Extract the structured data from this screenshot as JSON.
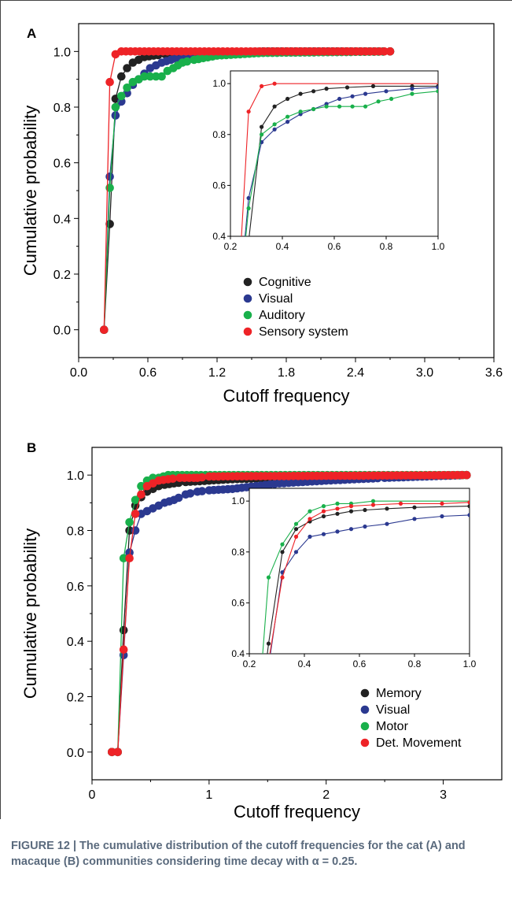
{
  "panels": [
    {
      "label": "A",
      "xlabel": "Cutoff frequency",
      "ylabel": "Cumulative probability",
      "xticks": [
        "0.0",
        "0.6",
        "1.2",
        "1.8",
        "2.4",
        "3.0",
        "3.6"
      ],
      "yticks": [
        "0.0",
        "0.2",
        "0.4",
        "0.6",
        "0.8",
        "1.0"
      ],
      "inset_xticks": [
        "0.2",
        "0.4",
        "0.6",
        "0.8",
        "1.0"
      ],
      "inset_yticks": [
        "0.4",
        "0.6",
        "0.8",
        "1.0"
      ],
      "legend": [
        "Cognitive",
        "Visual",
        "Auditory",
        "Sensory system"
      ]
    },
    {
      "label": "B",
      "xlabel": "Cutoff frequency",
      "ylabel": "Cumulative probability",
      "xticks": [
        "0",
        "1",
        "2",
        "3"
      ],
      "yticks": [
        "0.0",
        "0.2",
        "0.4",
        "0.6",
        "0.8",
        "1.0"
      ],
      "inset_xticks": [
        "0.2",
        "0.4",
        "0.6",
        "0.8",
        "1.0"
      ],
      "inset_yticks": [
        "0.4",
        "0.6",
        "0.8",
        "1.0"
      ],
      "legend": [
        "Memory",
        "Visual",
        "Motor",
        "Det. Movement"
      ]
    }
  ],
  "caption": "FIGURE 12 | The cumulative distribution of the cutoff frequencies for the cat (A) and macaque (B) communities considering time decay with α = 0.25.",
  "colors": {
    "black": "#222222",
    "blue": "#2b3990",
    "green": "#19b04b",
    "red": "#ee2327",
    "caption": "#5a6a7d"
  },
  "chart_data": [
    {
      "type": "line",
      "panel": "A",
      "xlabel": "Cutoff frequency",
      "ylabel": "Cumulative probability",
      "xlim": [
        0,
        3.6
      ],
      "ylim": [
        -0.1,
        1.1
      ],
      "inset": {
        "xlim": [
          0.2,
          1.0
        ],
        "ylim": [
          0.4,
          1.05
        ]
      },
      "series": [
        {
          "name": "Cognitive",
          "color": "#222222",
          "x_end": 2.7,
          "points": [
            [
              0.22,
              0.0
            ],
            [
              0.27,
              0.38
            ],
            [
              0.32,
              0.83
            ],
            [
              0.37,
              0.91
            ],
            [
              0.42,
              0.94
            ],
            [
              0.47,
              0.96
            ],
            [
              0.52,
              0.97
            ],
            [
              0.57,
              0.98
            ],
            [
              0.65,
              0.985
            ],
            [
              0.75,
              0.99
            ],
            [
              0.9,
              0.99
            ],
            [
              1.0,
              0.99
            ],
            [
              1.2,
              0.995
            ],
            [
              1.6,
              1.0
            ],
            [
              2.7,
              1.0
            ]
          ]
        },
        {
          "name": "Visual",
          "color": "#2b3990",
          "x_end": 2.7,
          "points": [
            [
              0.22,
              0.0
            ],
            [
              0.27,
              0.55
            ],
            [
              0.32,
              0.77
            ],
            [
              0.37,
              0.82
            ],
            [
              0.42,
              0.85
            ],
            [
              0.47,
              0.88
            ],
            [
              0.52,
              0.9
            ],
            [
              0.57,
              0.92
            ],
            [
              0.62,
              0.94
            ],
            [
              0.67,
              0.95
            ],
            [
              0.72,
              0.96
            ],
            [
              0.8,
              0.97
            ],
            [
              0.9,
              0.98
            ],
            [
              1.0,
              0.985
            ],
            [
              1.2,
              0.99
            ],
            [
              1.6,
              0.995
            ],
            [
              2.7,
              1.0
            ]
          ]
        },
        {
          "name": "Auditory",
          "color": "#19b04b",
          "x_end": 2.7,
          "points": [
            [
              0.22,
              0.0
            ],
            [
              0.27,
              0.51
            ],
            [
              0.32,
              0.8
            ],
            [
              0.37,
              0.84
            ],
            [
              0.42,
              0.87
            ],
            [
              0.47,
              0.89
            ],
            [
              0.52,
              0.9
            ],
            [
              0.57,
              0.91
            ],
            [
              0.62,
              0.91
            ],
            [
              0.67,
              0.91
            ],
            [
              0.72,
              0.91
            ],
            [
              0.77,
              0.93
            ],
            [
              0.82,
              0.94
            ],
            [
              0.9,
              0.96
            ],
            [
              1.0,
              0.97
            ],
            [
              1.2,
              0.985
            ],
            [
              1.6,
              0.995
            ],
            [
              2.7,
              1.0
            ]
          ]
        },
        {
          "name": "Sensory system",
          "color": "#ee2327",
          "x_end": 2.7,
          "points": [
            [
              0.22,
              0.0
            ],
            [
              0.27,
              0.89
            ],
            [
              0.32,
              0.99
            ],
            [
              0.37,
              1.0
            ],
            [
              2.7,
              1.0
            ]
          ]
        }
      ]
    },
    {
      "type": "line",
      "panel": "B",
      "xlabel": "Cutoff frequency",
      "ylabel": "Cumulative probability",
      "xlim": [
        0,
        3.5
      ],
      "ylim": [
        -0.1,
        1.1
      ],
      "inset": {
        "xlim": [
          0.2,
          1.0
        ],
        "ylim": [
          0.4,
          1.05
        ]
      },
      "series": [
        {
          "name": "Memory",
          "color": "#222222",
          "x_end": 3.2,
          "points": [
            [
              0.17,
              0.0
            ],
            [
              0.22,
              0.0
            ],
            [
              0.27,
              0.44
            ],
            [
              0.32,
              0.8
            ],
            [
              0.37,
              0.89
            ],
            [
              0.42,
              0.92
            ],
            [
              0.47,
              0.94
            ],
            [
              0.52,
              0.95
            ],
            [
              0.57,
              0.96
            ],
            [
              0.62,
              0.965
            ],
            [
              0.7,
              0.97
            ],
            [
              0.8,
              0.975
            ],
            [
              1.0,
              0.98
            ],
            [
              1.2,
              0.985
            ],
            [
              1.6,
              0.99
            ],
            [
              2.0,
              0.995
            ],
            [
              3.2,
              1.0
            ]
          ]
        },
        {
          "name": "Visual",
          "color": "#2b3990",
          "x_end": 3.2,
          "points": [
            [
              0.17,
              0.0
            ],
            [
              0.22,
              0.0
            ],
            [
              0.27,
              0.35
            ],
            [
              0.32,
              0.72
            ],
            [
              0.37,
              0.8
            ],
            [
              0.42,
              0.86
            ],
            [
              0.47,
              0.87
            ],
            [
              0.52,
              0.88
            ],
            [
              0.57,
              0.89
            ],
            [
              0.62,
              0.9
            ],
            [
              0.7,
              0.91
            ],
            [
              0.8,
              0.93
            ],
            [
              0.9,
              0.94
            ],
            [
              1.0,
              0.945
            ],
            [
              1.2,
              0.95
            ],
            [
              1.6,
              0.97
            ],
            [
              2.0,
              0.98
            ],
            [
              2.5,
              0.99
            ],
            [
              3.2,
              1.0
            ]
          ]
        },
        {
          "name": "Motor",
          "color": "#19b04b",
          "x_end": 3.2,
          "points": [
            [
              0.17,
              0.0
            ],
            [
              0.22,
              0.0
            ],
            [
              0.27,
              0.7
            ],
            [
              0.32,
              0.83
            ],
            [
              0.37,
              0.91
            ],
            [
              0.42,
              0.96
            ],
            [
              0.47,
              0.98
            ],
            [
              0.52,
              0.99
            ],
            [
              0.57,
              0.99
            ],
            [
              0.65,
              1.0
            ],
            [
              3.2,
              1.0
            ]
          ]
        },
        {
          "name": "Det. Movement",
          "color": "#ee2327",
          "x_end": 3.2,
          "points": [
            [
              0.17,
              0.0
            ],
            [
              0.22,
              0.0
            ],
            [
              0.27,
              0.37
            ],
            [
              0.32,
              0.7
            ],
            [
              0.37,
              0.86
            ],
            [
              0.42,
              0.93
            ],
            [
              0.47,
              0.96
            ],
            [
              0.52,
              0.97
            ],
            [
              0.57,
              0.98
            ],
            [
              0.65,
              0.985
            ],
            [
              0.75,
              0.99
            ],
            [
              0.9,
              0.99
            ],
            [
              1.0,
              0.995
            ],
            [
              3.2,
              1.0
            ]
          ]
        }
      ]
    }
  ]
}
